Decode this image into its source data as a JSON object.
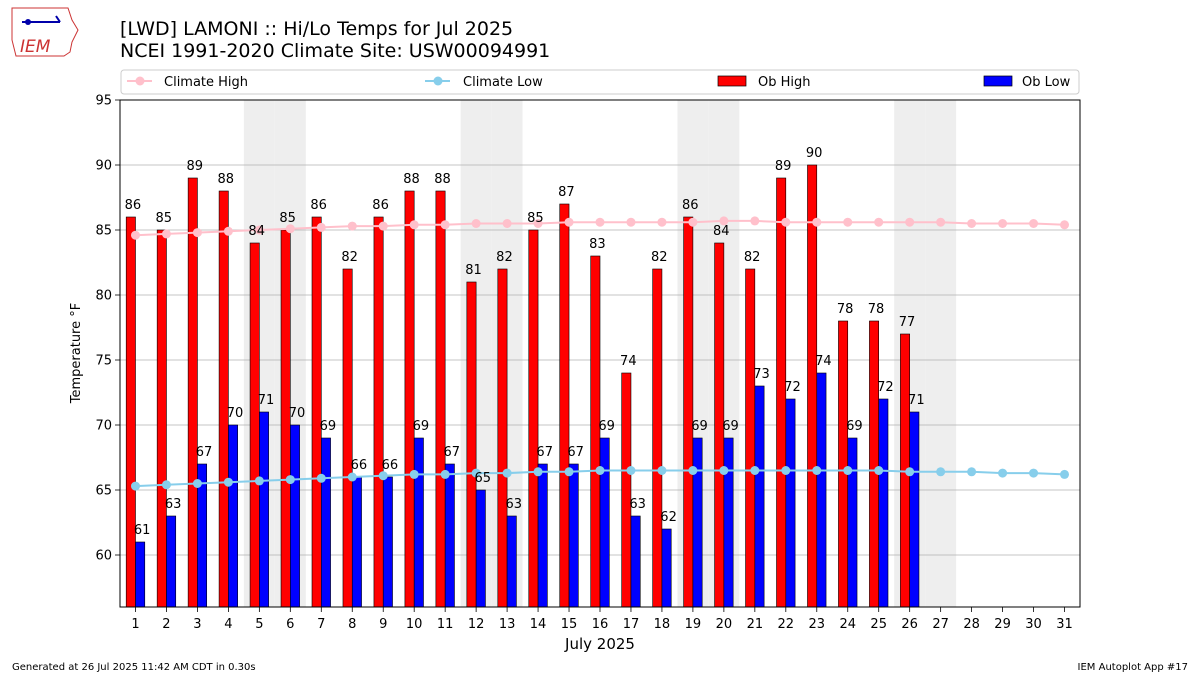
{
  "logo": {
    "text": "IEM"
  },
  "chart_data": {
    "type": "bar",
    "title_line1": "[LWD] LAMONI :: Hi/Lo Temps for Jul 2025",
    "title_line2": "NCEI 1991-2020 Climate Site: USW00094991",
    "xlabel": "July 2025",
    "ylabel": "Temperature °F",
    "ylim": [
      56,
      95
    ],
    "yticks": [
      60,
      65,
      70,
      75,
      80,
      85,
      90,
      95
    ],
    "grid": true,
    "legend_position": "top",
    "days": [
      1,
      2,
      3,
      4,
      5,
      6,
      7,
      8,
      9,
      10,
      11,
      12,
      13,
      14,
      15,
      16,
      17,
      18,
      19,
      20,
      21,
      22,
      23,
      24,
      25,
      26,
      27,
      28,
      29,
      30,
      31
    ],
    "weekend_days": [
      5,
      6,
      12,
      13,
      19,
      20,
      26,
      27
    ],
    "series": [
      {
        "name": "Ob High",
        "kind": "bar",
        "color": "#ff0000",
        "values": [
          86,
          85,
          89,
          88,
          84,
          85,
          86,
          82,
          86,
          88,
          88,
          81,
          82,
          85,
          87,
          83,
          74,
          82,
          86,
          84,
          82,
          89,
          90,
          78,
          78,
          77
        ]
      },
      {
        "name": "Ob Low",
        "kind": "bar",
        "color": "#0000ff",
        "values": [
          61,
          63,
          67,
          70,
          71,
          70,
          69,
          66,
          66,
          69,
          67,
          65,
          63,
          67,
          67,
          69,
          63,
          62,
          69,
          69,
          73,
          72,
          74,
          69,
          72,
          71
        ]
      },
      {
        "name": "Climate High",
        "kind": "line",
        "color": "#ffc0cb",
        "values": [
          84.6,
          84.7,
          84.8,
          84.9,
          85.0,
          85.1,
          85.2,
          85.3,
          85.3,
          85.4,
          85.4,
          85.5,
          85.5,
          85.5,
          85.6,
          85.6,
          85.6,
          85.6,
          85.6,
          85.7,
          85.7,
          85.6,
          85.6,
          85.6,
          85.6,
          85.6,
          85.6,
          85.5,
          85.5,
          85.5,
          85.4
        ]
      },
      {
        "name": "Climate Low",
        "kind": "line",
        "color": "#87ceeb",
        "values": [
          65.3,
          65.4,
          65.5,
          65.6,
          65.7,
          65.8,
          65.9,
          66.0,
          66.1,
          66.2,
          66.2,
          66.3,
          66.3,
          66.4,
          66.4,
          66.5,
          66.5,
          66.5,
          66.5,
          66.5,
          66.5,
          66.5,
          66.5,
          66.5,
          66.5,
          66.4,
          66.4,
          66.4,
          66.3,
          66.3,
          66.2
        ]
      }
    ]
  },
  "footer": {
    "generated": "Generated at 26 Jul 2025 11:42 AM CDT in 0.30s",
    "app": "IEM Autoplot App #17"
  }
}
